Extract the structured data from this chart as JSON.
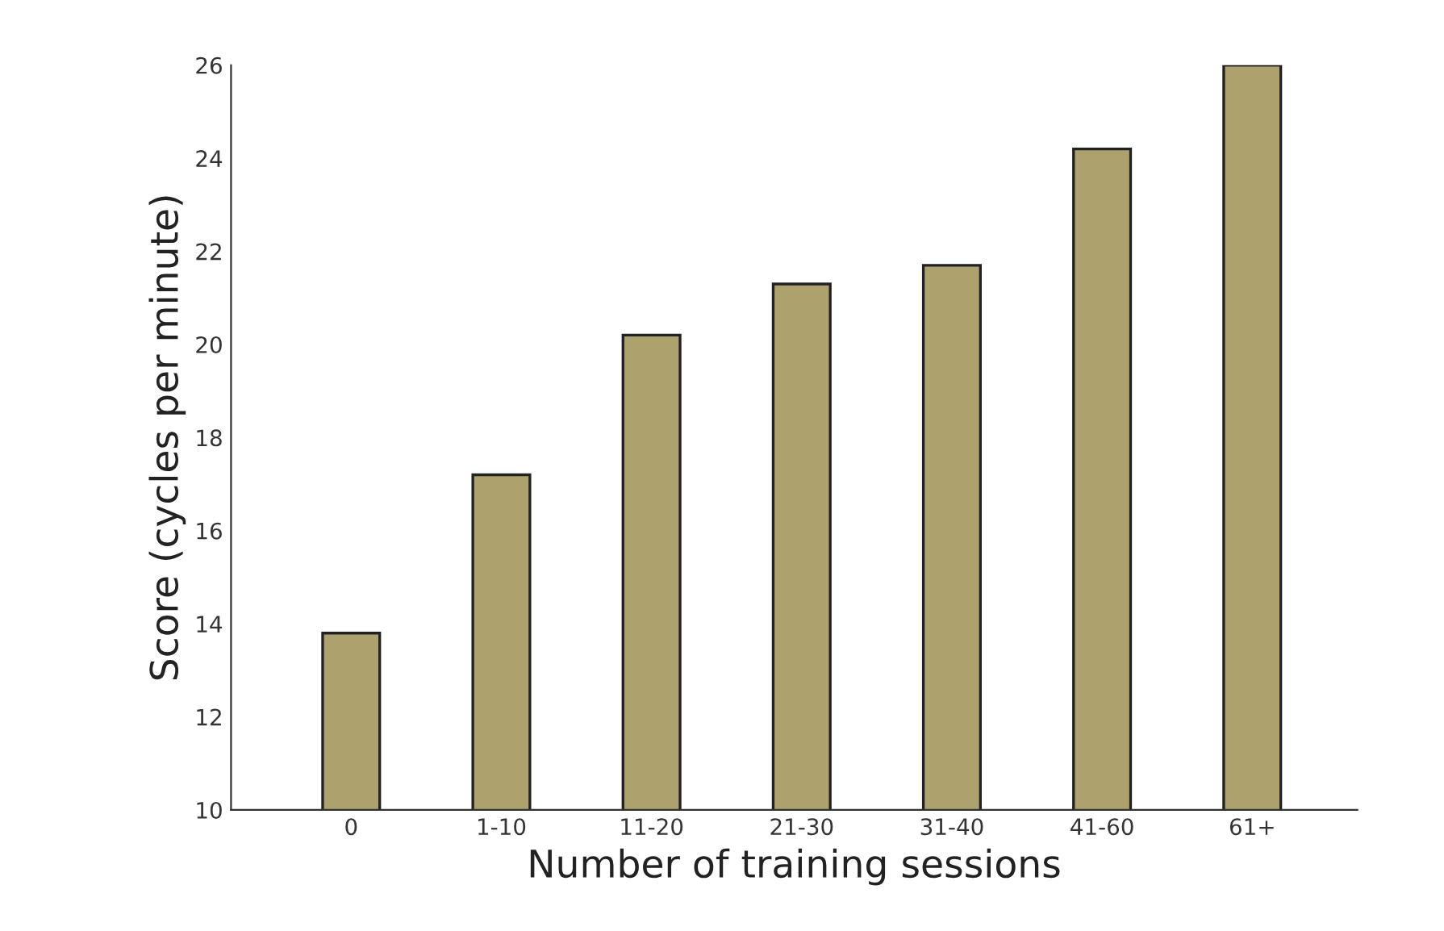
{
  "chart_data": {
    "type": "bar",
    "xlabel": "Number of training sessions",
    "ylabel": "Score (cycles per minute)",
    "categories": [
      "0",
      "1-10",
      "11-20",
      "21-30",
      "31-40",
      "41-60",
      "61+"
    ],
    "values": [
      13.8,
      17.2,
      20.2,
      21.3,
      21.7,
      24.2,
      26.0
    ],
    "color": "#ada26e",
    "ylim": [
      10,
      26
    ],
    "yticks": [
      10,
      12,
      14,
      16,
      18,
      20,
      22,
      24,
      26
    ],
    "grid": false,
    "legend": false
  }
}
